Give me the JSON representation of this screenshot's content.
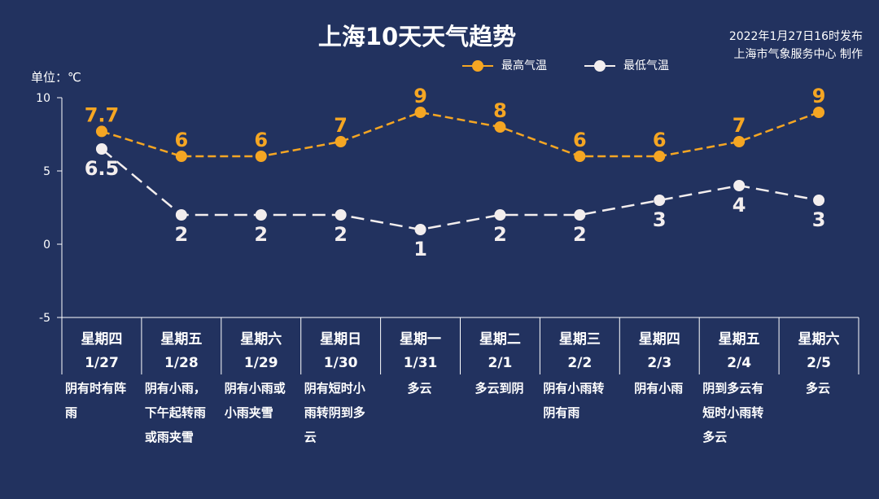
{
  "header": {
    "title": "上海10天天气趋势",
    "publish_time": "2022年1月27日16时发布",
    "publisher": "上海市气象服务中心 制作",
    "unit_label": "单位：℃"
  },
  "chart_data": {
    "type": "line",
    "title": "上海10天天气趋势",
    "ylabel": "单位：℃",
    "ylim": [
      -5,
      10
    ],
    "yticks": [
      10,
      5,
      0,
      -5
    ],
    "grid": false,
    "legend_position": "top",
    "categories": [
      {
        "weekday": "星期四",
        "date": "1/27",
        "weather": "阴有时有阵雨"
      },
      {
        "weekday": "星期五",
        "date": "1/28",
        "weather": "阴有小雨，下午起转雨或雨夹雪"
      },
      {
        "weekday": "星期六",
        "date": "1/29",
        "weather": "阴有小雨或小雨夹雪"
      },
      {
        "weekday": "星期日",
        "date": "1/30",
        "weather": "阴有短时小雨转阴到多云"
      },
      {
        "weekday": "星期一",
        "date": "1/31",
        "weather": "多云"
      },
      {
        "weekday": "星期二",
        "date": "2/1",
        "weather": "多云到阴"
      },
      {
        "weekday": "星期三",
        "date": "2/2",
        "weather": "阴有小雨转阴有雨"
      },
      {
        "weekday": "星期四",
        "date": "2/3",
        "weather": "阴有小雨"
      },
      {
        "weekday": "星期五",
        "date": "2/4",
        "weather": "阴到多云有短时小雨转多云"
      },
      {
        "weekday": "星期六",
        "date": "2/5",
        "weather": "多云"
      }
    ],
    "series": [
      {
        "name": "最高气温",
        "color": "#f5a623",
        "values": [
          7.7,
          6,
          6,
          7,
          9,
          8,
          6,
          6,
          7,
          9
        ],
        "labels": [
          "7.7",
          "6",
          "6",
          "7",
          "9",
          "8",
          "6",
          "6",
          "7",
          "9"
        ],
        "label_position": "above"
      },
      {
        "name": "最低气温",
        "color": "#f3eeee",
        "values": [
          6.5,
          2,
          2,
          2,
          1,
          2,
          2,
          3,
          4,
          3
        ],
        "labels": [
          "6.5",
          "2",
          "2",
          "2",
          "1",
          "2",
          "2",
          "3",
          "4",
          "3"
        ],
        "label_position": "below"
      }
    ]
  }
}
